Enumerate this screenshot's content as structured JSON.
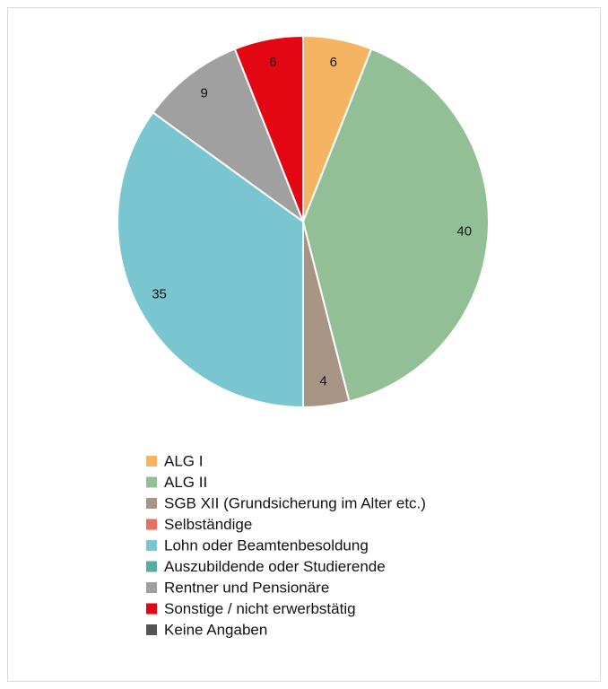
{
  "chart_data": {
    "type": "pie",
    "categories": [
      "ALG I",
      "ALG II",
      "SGB XII (Grundsicherung im Alter etc.)",
      "Selbständige",
      "Lohn oder Beamtenbesoldung",
      "Auszubildende oder Studierende",
      "Rentner und Pensionäre",
      "Sonstige / nicht erwerbstätig",
      "Keine Angaben"
    ],
    "values": [
      6,
      40,
      4,
      0,
      35,
      0,
      9,
      6,
      0
    ],
    "colors": [
      "#f5b461",
      "#93bf96",
      "#a89484",
      "#e8705e",
      "#7ac6d0",
      "#5aab9f",
      "#a0a0a0",
      "#e30613",
      "#555555"
    ],
    "legend": "bottom"
  }
}
